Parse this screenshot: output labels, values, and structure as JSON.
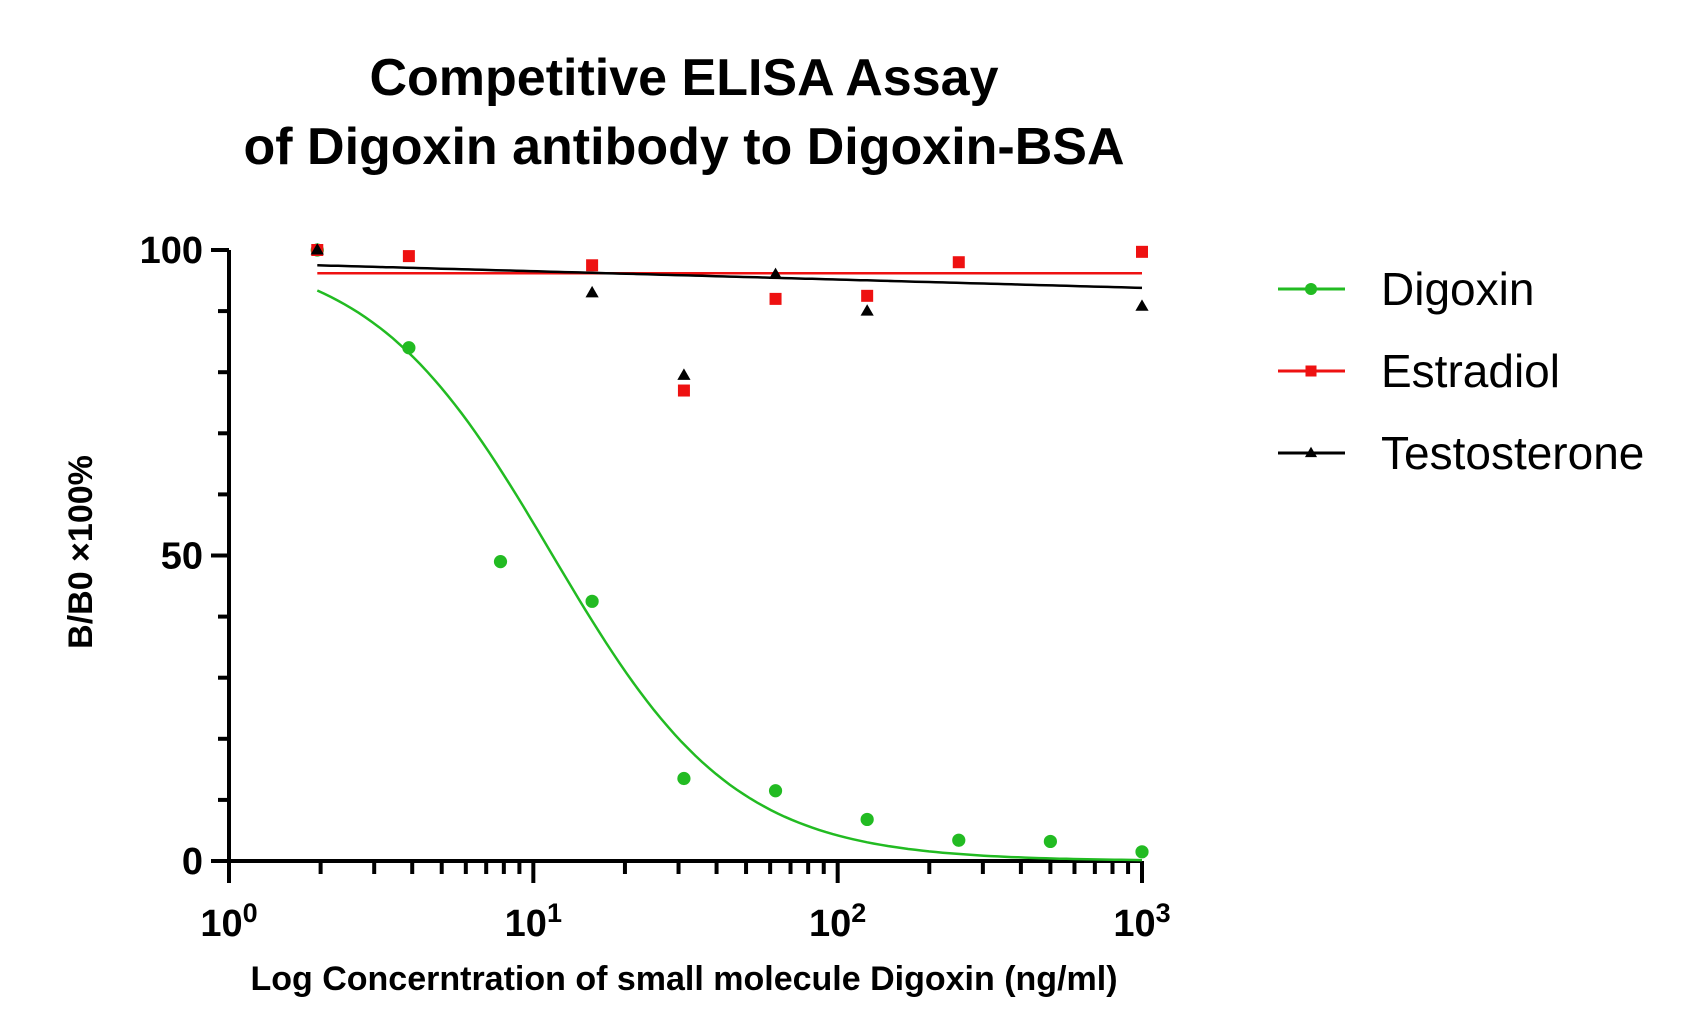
{
  "chart_data": {
    "type": "scatter",
    "title_lines": [
      "Competitive ELISA Assay",
      "of Digoxin antibody to Digoxin-BSA"
    ],
    "xlabel": "Log Concerntration of small molecule Digoxin (ng/ml)",
    "ylabel": "B/B0 ×100%",
    "x_scale": "log",
    "xlim": [
      1,
      1000
    ],
    "ylim": [
      0,
      100
    ],
    "x_ticks": [
      {
        "value": 1,
        "base": "10",
        "exp": "0"
      },
      {
        "value": 10,
        "base": "10",
        "exp": "1"
      },
      {
        "value": 100,
        "base": "10",
        "exp": "2"
      },
      {
        "value": 1000,
        "base": "10",
        "exp": "3"
      }
    ],
    "y_ticks": [
      {
        "value": 0,
        "label": "0"
      },
      {
        "value": 50,
        "label": "50"
      },
      {
        "value": 100,
        "label": "100"
      }
    ],
    "y_minor_step": 10,
    "grid": false,
    "legend_position": "right",
    "series": [
      {
        "name": "Digoxin",
        "color": "#22bb22",
        "marker": "circle",
        "x": [
          1.95,
          3.9,
          7.8,
          15.6,
          31.25,
          62.5,
          125,
          250,
          500,
          1000
        ],
        "y": [
          100,
          84,
          49,
          42.5,
          13.5,
          11.5,
          6.8,
          3.4,
          3.2,
          1.5
        ],
        "fit": {
          "type": "4pl",
          "top": 100.5,
          "bottom": 0,
          "ec50": 11.5,
          "hill": 1.45
        }
      },
      {
        "name": "Estradiol",
        "color": "#ee1111",
        "marker": "square",
        "x": [
          1.95,
          3.9,
          15.6,
          31.25,
          62.5,
          125,
          250,
          1000
        ],
        "y": [
          100,
          99,
          97.5,
          77,
          92,
          92.5,
          98,
          99.7
        ],
        "fit": {
          "type": "linear",
          "y_start": 96.2,
          "y_end": 96.2
        }
      },
      {
        "name": "Testosterone",
        "color": "#000000",
        "marker": "triangle",
        "x": [
          1.95,
          15.6,
          31.25,
          62.5,
          125,
          1000
        ],
        "y": [
          100,
          93,
          79.5,
          96,
          90,
          90.8
        ],
        "fit": {
          "type": "linear",
          "y_start": 97.5,
          "y_end": 93.8
        }
      }
    ]
  }
}
